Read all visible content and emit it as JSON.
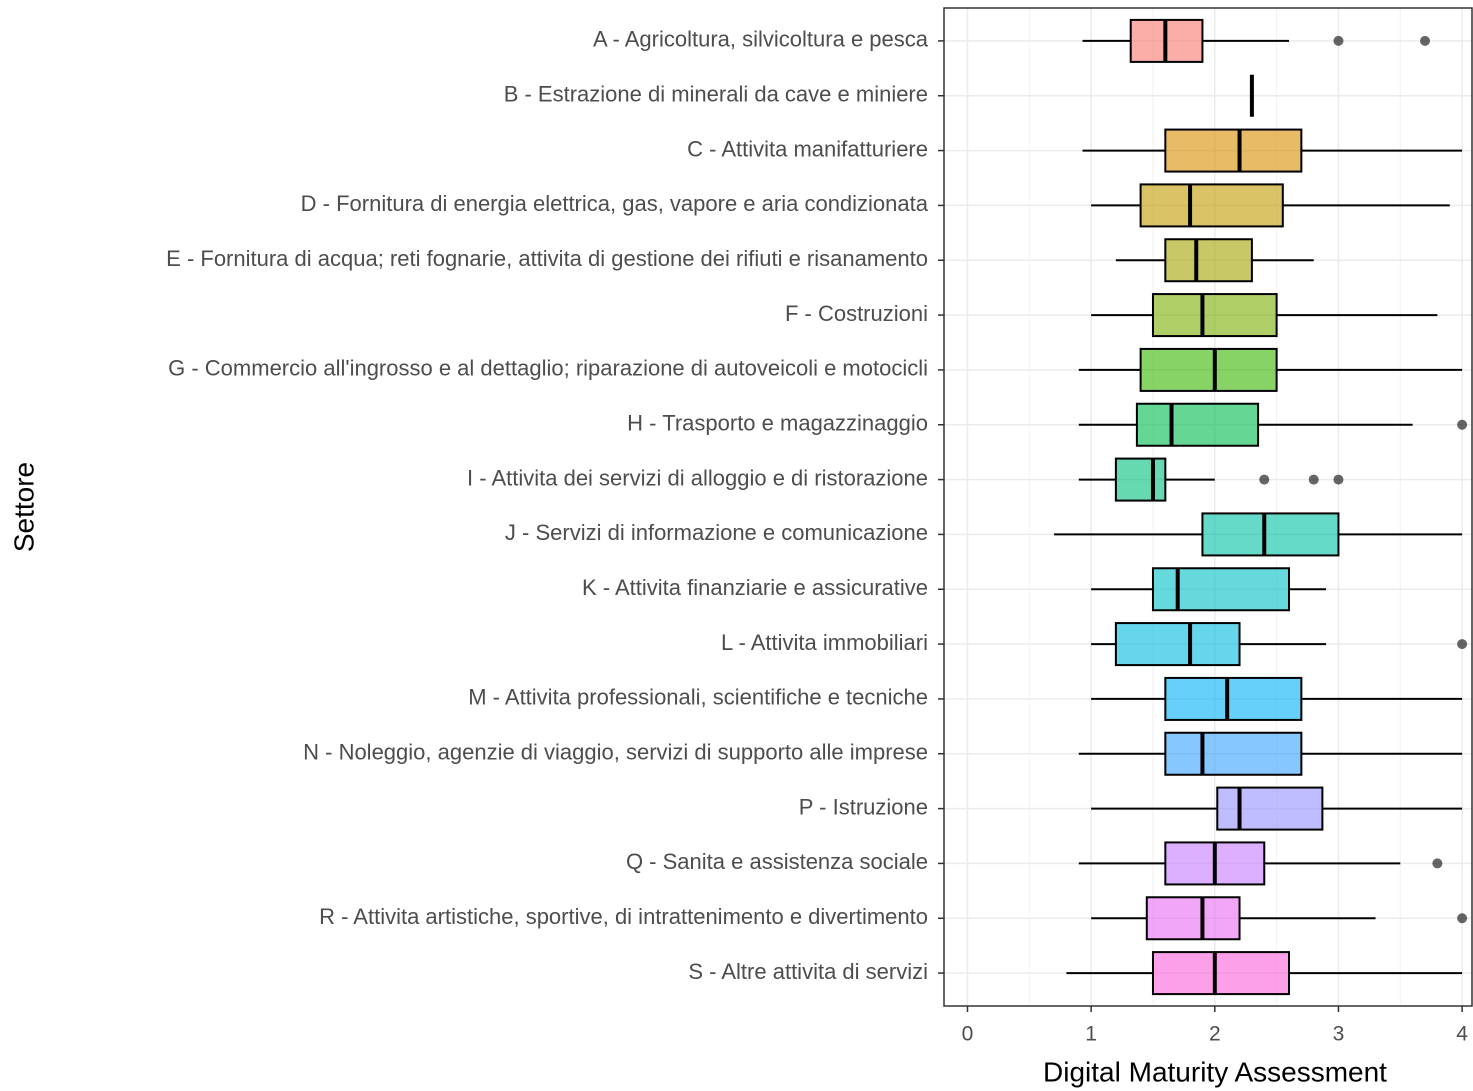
{
  "chart_data": {
    "type": "boxplot",
    "orientation": "horizontal",
    "x_label": "Digital Maturity Assessment",
    "y_label": "Settore",
    "xlim": [
      -0.19,
      4.08
    ],
    "xticks": [
      0,
      1,
      2,
      3,
      4
    ],
    "grid": true,
    "categories": [
      "A - Agricoltura, silvicoltura e pesca",
      "B - Estrazione di minerali da cave e miniere",
      "C - Attivita manifatturiere",
      "D - Fornitura di energia elettrica, gas, vapore e aria condizionata",
      "E - Fornitura di acqua; reti fognarie, attivita di gestione dei rifiuti e risanamento",
      "F - Costruzioni",
      "G - Commercio all'ingrosso e al dettaglio; riparazione di autoveicoli e motocicli",
      "H - Trasporto e magazzinaggio",
      "I - Attivita dei servizi di alloggio e di ristorazione",
      "J - Servizi di informazione e comunicazione",
      "K - Attivita finanziarie e assicurative",
      "L - Attivita immobiliari",
      "M - Attivita professionali, scientifiche e tecniche",
      "N - Noleggio, agenzie di viaggio, servizi di supporto alle imprese",
      "P - Istruzione",
      "Q - Sanita e assistenza sociale",
      "R - Attivita artistiche, sportive, di intrattenimento e divertimento",
      "S - Altre attivita di servizi"
    ],
    "colors": [
      "#F8766D",
      "#EA8331",
      "#D89000",
      "#C09B00",
      "#A3A500",
      "#7CAE00",
      "#39B600",
      "#00BB4E",
      "#00BF7D",
      "#00C1A3",
      "#00BFC4",
      "#00BAE0",
      "#00B0F6",
      "#35A2FF",
      "#9590FF",
      "#C77CFF",
      "#E76BF3",
      "#FA62DB"
    ],
    "boxes": [
      {
        "low": 0.93,
        "q1": 1.32,
        "median": 1.6,
        "q3": 1.9,
        "high": 2.6,
        "outliers": [
          3.0,
          3.7
        ]
      },
      {
        "low": 2.3,
        "q1": 2.3,
        "median": 2.3,
        "q3": 2.3,
        "high": 2.3,
        "outliers": []
      },
      {
        "low": 0.93,
        "q1": 1.6,
        "median": 2.2,
        "q3": 2.7,
        "high": 4.0,
        "outliers": []
      },
      {
        "low": 1.0,
        "q1": 1.4,
        "median": 1.8,
        "q3": 2.55,
        "high": 3.9,
        "outliers": []
      },
      {
        "low": 1.2,
        "q1": 1.6,
        "median": 1.85,
        "q3": 2.3,
        "high": 2.8,
        "outliers": []
      },
      {
        "low": 1.0,
        "q1": 1.5,
        "median": 1.9,
        "q3": 2.5,
        "high": 3.8,
        "outliers": []
      },
      {
        "low": 0.9,
        "q1": 1.4,
        "median": 2.0,
        "q3": 2.5,
        "high": 4.0,
        "outliers": []
      },
      {
        "low": 0.9,
        "q1": 1.37,
        "median": 1.65,
        "q3": 2.35,
        "high": 3.6,
        "outliers": [
          4.0
        ]
      },
      {
        "low": 0.9,
        "q1": 1.2,
        "median": 1.5,
        "q3": 1.6,
        "high": 2.0,
        "outliers": [
          2.4,
          2.8,
          3.0
        ]
      },
      {
        "low": 0.7,
        "q1": 1.9,
        "median": 2.4,
        "q3": 3.0,
        "high": 4.0,
        "outliers": []
      },
      {
        "low": 1.0,
        "q1": 1.5,
        "median": 1.7,
        "q3": 2.6,
        "high": 2.9,
        "outliers": []
      },
      {
        "low": 1.0,
        "q1": 1.2,
        "median": 1.8,
        "q3": 2.2,
        "high": 2.9,
        "outliers": [
          4.0
        ]
      },
      {
        "low": 1.0,
        "q1": 1.6,
        "median": 2.1,
        "q3": 2.7,
        "high": 4.0,
        "outliers": []
      },
      {
        "low": 0.9,
        "q1": 1.6,
        "median": 1.9,
        "q3": 2.7,
        "high": 4.0,
        "outliers": []
      },
      {
        "low": 1.0,
        "q1": 2.02,
        "median": 2.2,
        "q3": 2.87,
        "high": 4.0,
        "outliers": []
      },
      {
        "low": 0.9,
        "q1": 1.6,
        "median": 2.0,
        "q3": 2.4,
        "high": 3.5,
        "outliers": [
          3.8
        ]
      },
      {
        "low": 1.0,
        "q1": 1.45,
        "median": 1.9,
        "q3": 2.2,
        "high": 3.3,
        "outliers": [
          4.0
        ]
      },
      {
        "low": 0.8,
        "q1": 1.5,
        "median": 2.0,
        "q3": 2.6,
        "high": 4.0,
        "outliers": []
      }
    ]
  }
}
